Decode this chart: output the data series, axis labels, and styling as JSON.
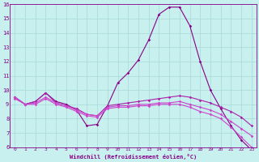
{
  "xlabel": "Windchill (Refroidissement éolien,°C)",
  "xlim": [
    -0.5,
    23.5
  ],
  "ylim": [
    6,
    16
  ],
  "yticks": [
    6,
    7,
    8,
    9,
    10,
    11,
    12,
    13,
    14,
    15,
    16
  ],
  "xticks": [
    0,
    1,
    2,
    3,
    4,
    5,
    6,
    7,
    8,
    9,
    10,
    11,
    12,
    13,
    14,
    15,
    16,
    17,
    18,
    19,
    20,
    21,
    22,
    23
  ],
  "background_color": "#c8f0ee",
  "grid_color": "#a8d8d8",
  "line_color_dark": "#880088",
  "line_color_mid": "#aa22aa",
  "line_color_light": "#cc44cc",
  "series": [
    [
      9.5,
      9.0,
      9.2,
      9.8,
      9.2,
      9.0,
      8.6,
      7.5,
      7.6,
      8.9,
      10.5,
      11.2,
      12.1,
      13.5,
      15.3,
      15.8,
      15.8,
      14.5,
      12.0,
      10.0,
      8.7,
      7.5,
      6.5,
      5.8
    ],
    [
      9.5,
      9.0,
      9.2,
      9.8,
      9.1,
      8.9,
      8.7,
      8.3,
      8.2,
      8.9,
      9.0,
      9.1,
      9.2,
      9.3,
      9.4,
      9.5,
      9.6,
      9.5,
      9.3,
      9.1,
      8.8,
      8.5,
      8.1,
      7.5
    ],
    [
      9.5,
      9.0,
      9.1,
      9.5,
      9.1,
      8.9,
      8.6,
      8.3,
      8.2,
      8.8,
      8.9,
      8.9,
      9.0,
      9.0,
      9.1,
      9.1,
      9.2,
      9.0,
      8.8,
      8.6,
      8.3,
      7.8,
      7.3,
      6.8
    ],
    [
      9.4,
      9.0,
      9.0,
      9.4,
      9.0,
      8.8,
      8.5,
      8.2,
      8.1,
      8.7,
      8.8,
      8.8,
      8.9,
      8.9,
      9.0,
      9.0,
      9.0,
      8.8,
      8.5,
      8.3,
      8.0,
      7.4,
      6.7,
      6.0
    ]
  ],
  "series_colors": [
    "#880088",
    "#aa22aa",
    "#cc44cc",
    "#cc44cc"
  ],
  "series_lw": [
    1.0,
    1.0,
    1.0,
    1.0
  ]
}
